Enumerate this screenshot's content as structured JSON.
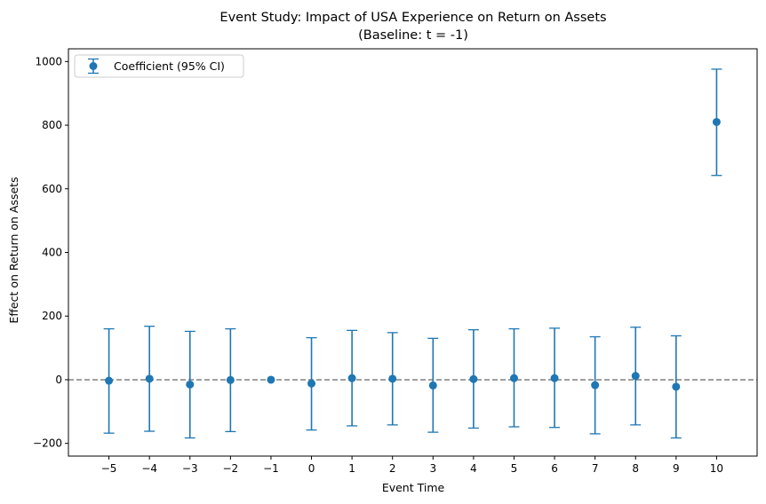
{
  "chart_data": {
    "type": "scatter",
    "title": "Event Study: Impact of USA Experience on Return on Assets",
    "subtitle": "(Baseline: t = -1)",
    "xlabel": "Event Time",
    "ylabel": "Effect on Return on Assets",
    "xlim": [
      -6,
      11
    ],
    "ylim": [
      -240,
      1040
    ],
    "x_ticks": [
      -5,
      -4,
      -3,
      -2,
      -1,
      0,
      1,
      2,
      3,
      4,
      5,
      6,
      7,
      8,
      9,
      10
    ],
    "x_tick_labels": [
      "−5",
      "−4",
      "−3",
      "−2",
      "−1",
      "0",
      "1",
      "2",
      "3",
      "4",
      "5",
      "6",
      "7",
      "8",
      "9",
      "10"
    ],
    "y_ticks": [
      -200,
      0,
      200,
      400,
      600,
      800,
      1000
    ],
    "y_tick_labels": [
      "−200",
      "0",
      "200",
      "400",
      "600",
      "800",
      "1000"
    ],
    "reference_line": {
      "y": 0,
      "style": "dashed",
      "color": "#808080"
    },
    "legend": {
      "label": "Coefficient (95% CI)",
      "position": "top-left"
    },
    "series": [
      {
        "name": "Coefficient (95% CI)",
        "color": "#1f77b4",
        "points": [
          {
            "x": -5,
            "y": -3,
            "lower": -168,
            "upper": 160
          },
          {
            "x": -4,
            "y": 3,
            "lower": -162,
            "upper": 168
          },
          {
            "x": -3,
            "y": -15,
            "lower": -183,
            "upper": 152
          },
          {
            "x": -2,
            "y": -1,
            "lower": -163,
            "upper": 160
          },
          {
            "x": -1,
            "y": 0,
            "lower": 0,
            "upper": 0
          },
          {
            "x": 0,
            "y": -12,
            "lower": -158,
            "upper": 132
          },
          {
            "x": 1,
            "y": 5,
            "lower": -145,
            "upper": 155
          },
          {
            "x": 2,
            "y": 3,
            "lower": -142,
            "upper": 148
          },
          {
            "x": 3,
            "y": -18,
            "lower": -165,
            "upper": 130
          },
          {
            "x": 4,
            "y": 2,
            "lower": -152,
            "upper": 157
          },
          {
            "x": 5,
            "y": 5,
            "lower": -148,
            "upper": 160
          },
          {
            "x": 6,
            "y": 5,
            "lower": -150,
            "upper": 162
          },
          {
            "x": 7,
            "y": -17,
            "lower": -170,
            "upper": 135
          },
          {
            "x": 8,
            "y": 12,
            "lower": -142,
            "upper": 165
          },
          {
            "x": 9,
            "y": -22,
            "lower": -183,
            "upper": 138
          },
          {
            "x": 10,
            "y": 810,
            "lower": 642,
            "upper": 976
          }
        ]
      }
    ]
  }
}
